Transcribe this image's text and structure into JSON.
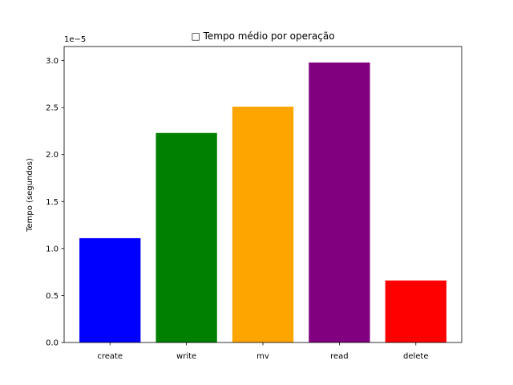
{
  "chart_data": {
    "type": "bar",
    "title": "□ Tempo médio por operação",
    "xlabel": "",
    "ylabel": "Tempo (segundos)",
    "offset_label": "1e−5",
    "categories": [
      "create",
      "write",
      "mv",
      "read",
      "delete"
    ],
    "values": [
      1.11e-05,
      2.23e-05,
      2.51e-05,
      2.98e-05,
      6.6e-06
    ],
    "colors": [
      "#0000ff",
      "#008000",
      "#ffa500",
      "#800080",
      "#ff0000"
    ],
    "ylim": [
      0,
      3.15e-05
    ],
    "yticks": [
      0,
      5e-06,
      1e-05,
      1.5e-05,
      2e-05,
      2.5e-05,
      3e-05
    ],
    "ytick_labels": [
      "0.0",
      "0.5",
      "1.0",
      "1.5",
      "2.0",
      "2.5",
      "3.0"
    ],
    "grid": false,
    "legend": false
  }
}
